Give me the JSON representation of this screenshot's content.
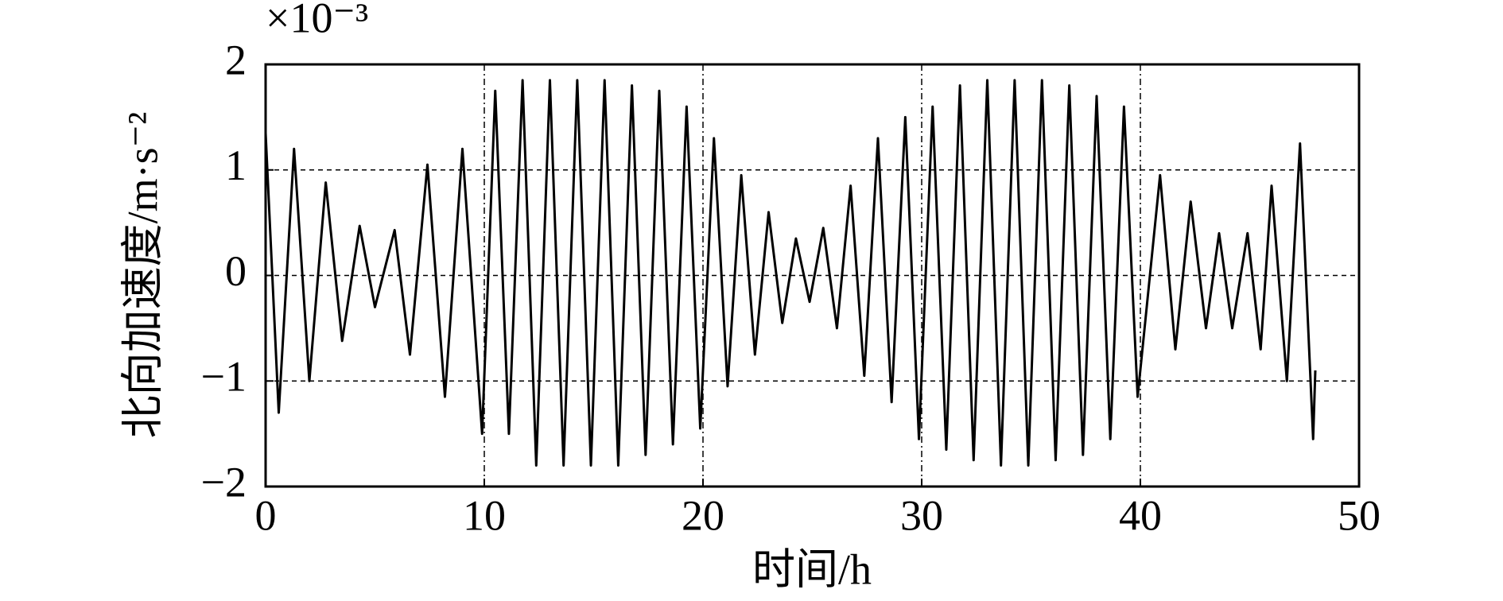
{
  "chart_data": {
    "type": "line",
    "x_label": "时间/h",
    "y_label": "北向加速度/m·s⁻²",
    "y_multiplier": "×10⁻³",
    "xlim": [
      0,
      50
    ],
    "xticks": [
      0,
      10,
      20,
      30,
      40,
      50
    ],
    "ylim": [
      -2,
      2
    ],
    "yticks": [
      {
        "value": -2,
        "label": "−2"
      },
      {
        "value": -1,
        "label": "−1"
      },
      0,
      1,
      2
    ],
    "grid": true,
    "series": [
      {
        "color": "#000000",
        "x": [
          0,
          0.6,
          1.3,
          2.0,
          2.75,
          3.5,
          4.3,
          5.0,
          5.9,
          6.6,
          7.4,
          8.2,
          9.0,
          9.9,
          10.5,
          11.125,
          11.75,
          12.375,
          13.0,
          13.625,
          14.25,
          14.875,
          15.5,
          16.125,
          16.75,
          17.375,
          18.0,
          18.625,
          19.25,
          19.875,
          20.5,
          21.125,
          21.75,
          22.375,
          23.0,
          23.625,
          24.25,
          24.875,
          25.5,
          26.125,
          26.75,
          27.375,
          28.0,
          28.625,
          29.25,
          29.875,
          30.5,
          31.125,
          31.75,
          32.375,
          33.0,
          33.625,
          34.25,
          34.875,
          35.5,
          36.125,
          36.75,
          37.375,
          38.0,
          38.625,
          39.25,
          39.875,
          40.9,
          41.6,
          42.3,
          43.0,
          43.6,
          44.2,
          44.9,
          45.5,
          46.0,
          46.7,
          47.3,
          47.9,
          48.0
        ],
        "values": [
          1.35,
          -1.3,
          1.2,
          -1.0,
          0.88,
          -0.62,
          0.47,
          -0.3,
          0.43,
          -0.75,
          1.05,
          -1.15,
          1.2,
          -1.5,
          1.75,
          -1.5,
          1.85,
          -1.8,
          1.85,
          -1.8,
          1.85,
          -1.8,
          1.85,
          -1.8,
          1.8,
          -1.7,
          1.75,
          -1.6,
          1.6,
          -1.45,
          1.3,
          -1.05,
          0.95,
          -0.75,
          0.6,
          -0.45,
          0.35,
          -0.25,
          0.45,
          -0.5,
          0.85,
          -0.95,
          1.3,
          -1.2,
          1.5,
          -1.55,
          1.6,
          -1.65,
          1.8,
          -1.75,
          1.85,
          -1.8,
          1.85,
          -1.8,
          1.85,
          -1.75,
          1.8,
          -1.7,
          1.7,
          -1.55,
          1.6,
          -1.15,
          0.95,
          -0.7,
          0.7,
          -0.5,
          0.4,
          -0.5,
          0.4,
          -0.7,
          0.85,
          -1.0,
          1.25,
          -1.55,
          -0.9
        ]
      }
    ]
  }
}
